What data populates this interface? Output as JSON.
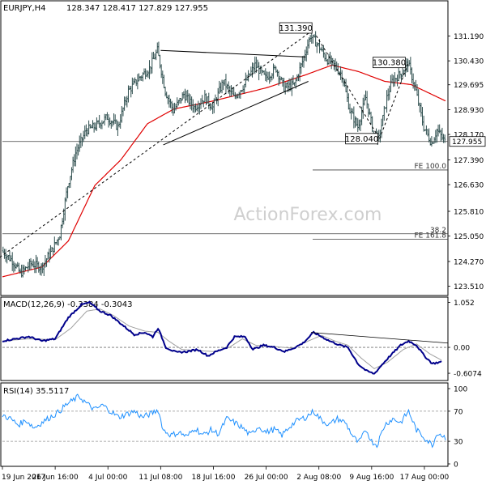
{
  "colors": {
    "background": "#ffffff",
    "frame": "#000000",
    "candle": "#2f4f4f",
    "sma": "#e00000",
    "macd_line": "#00008b",
    "macd_signal": "#a0a0a0",
    "rsi_line": "#1e90ff",
    "trendline": "#000000",
    "level_line": "#404040",
    "watermark": "#cfcfcf",
    "zero_line": "#707070"
  },
  "chart_data": [
    {
      "type": "candlestick",
      "title": "EURJPY,H4",
      "ohlc_label": "128.347 128.417 127.829 127.955",
      "watermark": "ActionForex.com",
      "ylim": [
        123.3,
        131.9
      ],
      "yticks": [
        "131.190",
        "130.430",
        "129.695",
        "128.930",
        "128.170",
        "127.390",
        "126.630",
        "125.810",
        "125.050",
        "124.270",
        "123.510"
      ],
      "ytick_values": [
        131.19,
        130.43,
        129.695,
        128.93,
        128.17,
        127.39,
        126.63,
        125.81,
        125.05,
        124.27,
        123.51
      ],
      "current_price_label": "127.955",
      "current_price": 127.955,
      "xticks": [
        "19 Jun 2017",
        "26 Jun 16:00",
        "4 Jul 00:00",
        "11 Jul 08:00",
        "18 Jul 16:00",
        "26 Jul 00:00",
        "2 Aug 08:00",
        "9 Aug 16:00",
        "17 Aug 00:00"
      ],
      "xtick_index": [
        0,
        40,
        80,
        120,
        160,
        200,
        240,
        280,
        320
      ],
      "bars": 336,
      "anchors": [
        [
          0,
          124.6
        ],
        [
          8,
          124.3
        ],
        [
          14,
          123.9
        ],
        [
          22,
          124.2
        ],
        [
          30,
          124.1
        ],
        [
          38,
          124.6
        ],
        [
          44,
          125.1
        ],
        [
          50,
          126.6
        ],
        [
          56,
          127.6
        ],
        [
          64,
          128.3
        ],
        [
          70,
          128.4
        ],
        [
          80,
          128.7
        ],
        [
          88,
          128.4
        ],
        [
          96,
          129.5
        ],
        [
          104,
          129.9
        ],
        [
          112,
          130.2
        ],
        [
          118,
          130.75
        ],
        [
          124,
          129.5
        ],
        [
          130,
          128.9
        ],
        [
          138,
          129.4
        ],
        [
          146,
          129.0
        ],
        [
          154,
          129.3
        ],
        [
          160,
          129.0
        ],
        [
          168,
          129.8
        ],
        [
          176,
          129.3
        ],
        [
          184,
          129.7
        ],
        [
          192,
          130.3
        ],
        [
          200,
          129.9
        ],
        [
          208,
          130.2
        ],
        [
          214,
          129.6
        ],
        [
          222,
          129.7
        ],
        [
          228,
          130.4
        ],
        [
          234,
          131.2
        ],
        [
          240,
          130.9
        ],
        [
          246,
          130.5
        ],
        [
          252,
          130.3
        ],
        [
          258,
          130.0
        ],
        [
          264,
          128.9
        ],
        [
          270,
          128.4
        ],
        [
          276,
          129.3
        ],
        [
          282,
          128.2
        ],
        [
          286,
          128.04
        ],
        [
          292,
          129.3
        ],
        [
          296,
          129.8
        ],
        [
          304,
          130.1
        ],
        [
          308,
          130.38
        ],
        [
          314,
          129.5
        ],
        [
          320,
          128.4
        ],
        [
          326,
          127.9
        ],
        [
          330,
          128.3
        ],
        [
          336,
          127.955
        ]
      ],
      "sma_anchors": [
        [
          0,
          123.8
        ],
        [
          30,
          124.1
        ],
        [
          50,
          124.9
        ],
        [
          70,
          126.6
        ],
        [
          90,
          127.4
        ],
        [
          110,
          128.5
        ],
        [
          130,
          128.95
        ],
        [
          160,
          129.2
        ],
        [
          200,
          129.6
        ],
        [
          230,
          130.0
        ],
        [
          250,
          130.3
        ],
        [
          270,
          130.1
        ],
        [
          290,
          129.8
        ],
        [
          310,
          129.7
        ],
        [
          336,
          129.2
        ]
      ],
      "annotations": [
        {
          "text": "131.390",
          "value": 131.39,
          "index": 236
        },
        {
          "text": "130.380",
          "value": 130.38,
          "index": 308
        },
        {
          "text": "128.040",
          "value": 128.04,
          "index": 286
        }
      ],
      "levels": [
        {
          "label": "FE 100.0",
          "value": 127.08
        },
        {
          "label": "38.2",
          "value": 125.12
        },
        {
          "label": "FE 161.8",
          "value": 124.95
        }
      ],
      "trendlines": [
        {
          "from": [
            120,
            130.75
          ],
          "to": [
            230,
            130.55
          ]
        },
        {
          "from": [
            122,
            127.85
          ],
          "to": [
            232,
            129.8
          ]
        },
        {
          "from": [
            -2,
            124.4
          ],
          "to": [
            236,
            131.39
          ]
        },
        {
          "from": [
            238,
            131.2
          ],
          "to": [
            286,
            128.04
          ]
        },
        {
          "from": [
            286,
            128.04
          ],
          "to": [
            308,
            130.38
          ]
        }
      ],
      "support_line": {
        "value": 127.955,
        "label": "127.955"
      }
    },
    {
      "type": "line",
      "title": "MACD(12,26,9) -0.3384 -0.3043",
      "ylim": [
        -0.72,
        1.12
      ],
      "yticks": [
        "1.052",
        "0.00",
        "-0.6074"
      ],
      "ytick_values": [
        1.052,
        0.0,
        -0.6074
      ],
      "macd_anchors": [
        [
          0,
          0.15
        ],
        [
          10,
          0.2
        ],
        [
          20,
          0.25
        ],
        [
          30,
          0.15
        ],
        [
          40,
          0.2
        ],
        [
          50,
          0.7
        ],
        [
          60,
          1.0
        ],
        [
          66,
          1.05
        ],
        [
          74,
          0.85
        ],
        [
          82,
          0.75
        ],
        [
          88,
          0.6
        ],
        [
          94,
          0.45
        ],
        [
          100,
          0.3
        ],
        [
          108,
          0.35
        ],
        [
          114,
          0.25
        ],
        [
          118,
          0.45
        ],
        [
          124,
          0.0
        ],
        [
          132,
          -0.12
        ],
        [
          140,
          -0.1
        ],
        [
          148,
          -0.05
        ],
        [
          156,
          -0.2
        ],
        [
          162,
          -0.1
        ],
        [
          170,
          0.0
        ],
        [
          176,
          0.25
        ],
        [
          184,
          0.25
        ],
        [
          190,
          -0.05
        ],
        [
          198,
          0.05
        ],
        [
          206,
          0.0
        ],
        [
          214,
          -0.1
        ],
        [
          222,
          0.0
        ],
        [
          228,
          0.1
        ],
        [
          236,
          0.35
        ],
        [
          242,
          0.25
        ],
        [
          248,
          0.15
        ],
        [
          256,
          0.05
        ],
        [
          262,
          0.0
        ],
        [
          270,
          -0.4
        ],
        [
          276,
          -0.55
        ],
        [
          282,
          -0.62
        ],
        [
          288,
          -0.4
        ],
        [
          294,
          -0.2
        ],
        [
          302,
          0.05
        ],
        [
          308,
          0.15
        ],
        [
          314,
          0.05
        ],
        [
          320,
          -0.2
        ],
        [
          326,
          -0.38
        ],
        [
          333,
          -0.34
        ]
      ],
      "signal_anchors": [
        [
          0,
          0.15
        ],
        [
          20,
          0.2
        ],
        [
          40,
          0.18
        ],
        [
          52,
          0.45
        ],
        [
          64,
          0.85
        ],
        [
          74,
          0.9
        ],
        [
          84,
          0.75
        ],
        [
          96,
          0.5
        ],
        [
          108,
          0.38
        ],
        [
          118,
          0.35
        ],
        [
          126,
          0.15
        ],
        [
          136,
          -0.05
        ],
        [
          150,
          -0.08
        ],
        [
          162,
          -0.1
        ],
        [
          172,
          0.0
        ],
        [
          182,
          0.2
        ],
        [
          192,
          0.05
        ],
        [
          206,
          0.02
        ],
        [
          220,
          -0.02
        ],
        [
          232,
          0.15
        ],
        [
          242,
          0.28
        ],
        [
          252,
          0.15
        ],
        [
          262,
          0.05
        ],
        [
          272,
          -0.25
        ],
        [
          282,
          -0.5
        ],
        [
          292,
          -0.35
        ],
        [
          304,
          -0.05
        ],
        [
          314,
          0.08
        ],
        [
          324,
          -0.15
        ],
        [
          333,
          -0.3
        ]
      ],
      "trendline": {
        "from": [
          234,
          0.35
        ],
        "to": [
          336,
          0.1
        ]
      }
    },
    {
      "type": "line",
      "title": "RSI(14) 35.5117",
      "ylim": [
        0,
        100
      ],
      "yticks": [
        "100",
        "70",
        "30",
        "0"
      ],
      "ytick_values": [
        100,
        70,
        30,
        0
      ],
      "reference_levels": [
        70,
        30
      ],
      "rsi_anchors": [
        [
          0,
          65
        ],
        [
          6,
          60
        ],
        [
          12,
          52
        ],
        [
          18,
          58
        ],
        [
          24,
          48
        ],
        [
          30,
          55
        ],
        [
          36,
          62
        ],
        [
          42,
          68
        ],
        [
          48,
          78
        ],
        [
          54,
          85
        ],
        [
          58,
          90
        ],
        [
          64,
          80
        ],
        [
          70,
          72
        ],
        [
          76,
          78
        ],
        [
          82,
          70
        ],
        [
          88,
          62
        ],
        [
          94,
          66
        ],
        [
          100,
          70
        ],
        [
          106,
          62
        ],
        [
          112,
          66
        ],
        [
          118,
          72
        ],
        [
          122,
          45
        ],
        [
          128,
          38
        ],
        [
          134,
          42
        ],
        [
          140,
          36
        ],
        [
          146,
          48
        ],
        [
          152,
          38
        ],
        [
          158,
          45
        ],
        [
          164,
          40
        ],
        [
          170,
          60
        ],
        [
          176,
          55
        ],
        [
          182,
          48
        ],
        [
          188,
          38
        ],
        [
          194,
          50
        ],
        [
          200,
          42
        ],
        [
          206,
          46
        ],
        [
          212,
          38
        ],
        [
          218,
          50
        ],
        [
          224,
          58
        ],
        [
          230,
          62
        ],
        [
          236,
          70
        ],
        [
          242,
          58
        ],
        [
          248,
          52
        ],
        [
          254,
          60
        ],
        [
          260,
          55
        ],
        [
          266,
          36
        ],
        [
          270,
          28
        ],
        [
          276,
          45
        ],
        [
          280,
          30
        ],
        [
          284,
          25
        ],
        [
          290,
          52
        ],
        [
          296,
          60
        ],
        [
          302,
          55
        ],
        [
          308,
          70
        ],
        [
          314,
          45
        ],
        [
          320,
          35
        ],
        [
          326,
          25
        ],
        [
          330,
          42
        ],
        [
          336,
          35
        ]
      ]
    }
  ]
}
